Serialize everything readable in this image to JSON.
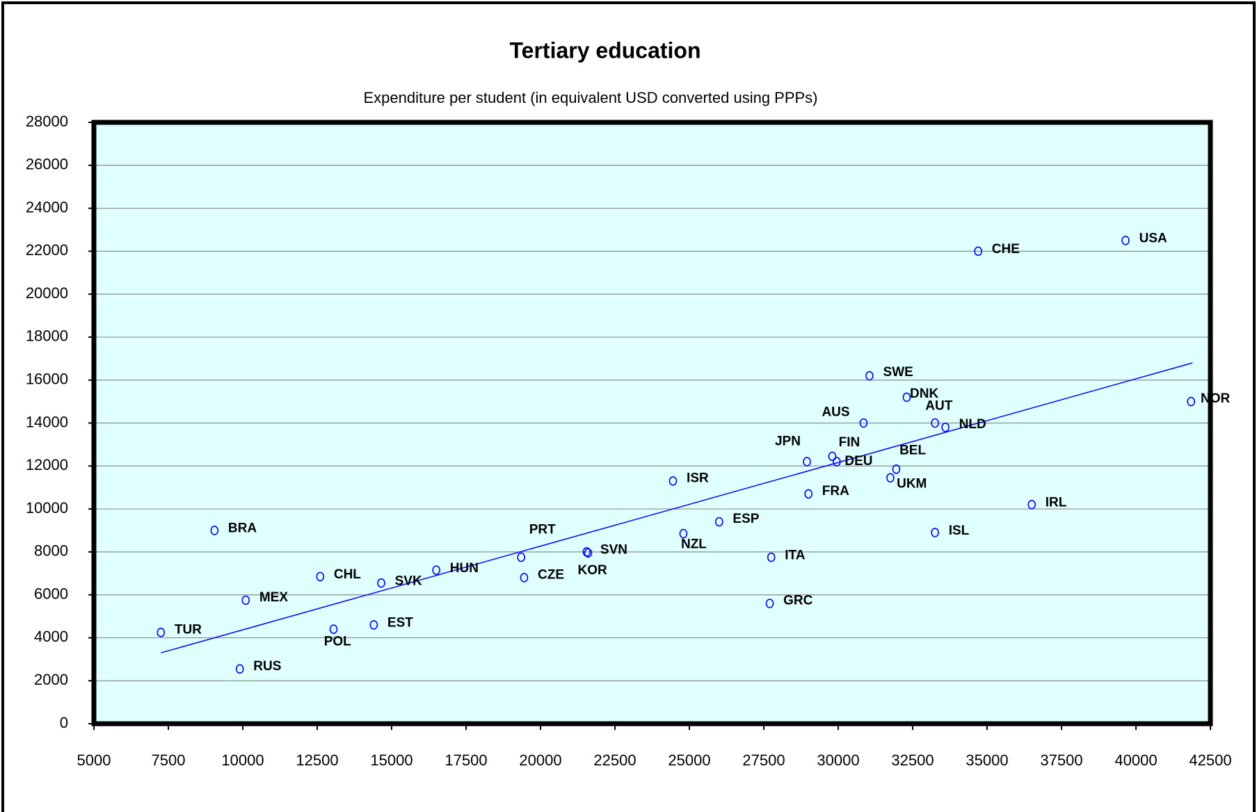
{
  "chart_data": {
    "type": "scatter",
    "title": "Tertiary education",
    "subtitle": "Expenditure per student (in equivalent USD converted using PPPs)",
    "labels": [
      "TUR",
      "BRA",
      "MEX",
      "RUS",
      "CHL",
      "POL",
      "EST",
      "SVK",
      "HUN",
      "PRT",
      "CZE",
      "SVN",
      "KOR",
      "ISR",
      "NZL",
      "ESP",
      "GRC",
      "ITA",
      "JPN",
      "FRA",
      "FIN",
      "DEU",
      "AUS",
      "SWE",
      "UKM",
      "BEL",
      "DNK",
      "AUT",
      "ISL",
      "NLD",
      "CHE",
      "IRL",
      "USA",
      "NOR"
    ],
    "x": [
      7250,
      9050,
      10100,
      9900,
      12600,
      13050,
      14400,
      14650,
      16500,
      19350,
      19450,
      21550,
      21600,
      24450,
      24800,
      26000,
      27700,
      27750,
      28950,
      29000,
      29800,
      29950,
      30850,
      31050,
      31750,
      31950,
      32300,
      33250,
      33250,
      33600,
      34700,
      36500,
      39650,
      41850
    ],
    "y": [
      4250,
      9000,
      5750,
      2550,
      6850,
      4400,
      4600,
      6550,
      7150,
      7750,
      6800,
      8000,
      7950,
      11300,
      8850,
      9400,
      5600,
      7750,
      12200,
      10700,
      12450,
      12200,
      14000,
      16200,
      11450,
      11850,
      15200,
      14000,
      8900,
      13800,
      22000,
      10200,
      22500,
      15000
    ],
    "color": "#0000ff",
    "trendline": {
      "x": [
        7250,
        41900
      ],
      "y": [
        3300,
        16800
      ],
      "color": "#0000ff"
    },
    "xlim": [
      5000,
      42500
    ],
    "ylim": [
      0,
      28000
    ],
    "xticks": [
      5000,
      7500,
      10000,
      12500,
      15000,
      17500,
      20000,
      22500,
      25000,
      27500,
      30000,
      32500,
      35000,
      37500,
      40000,
      42500
    ],
    "yticks": [
      0,
      2000,
      4000,
      6000,
      8000,
      10000,
      12000,
      14000,
      16000,
      18000,
      20000,
      22000,
      24000,
      26000,
      28000
    ],
    "grid": true,
    "plot_background": "#e0ffff"
  }
}
